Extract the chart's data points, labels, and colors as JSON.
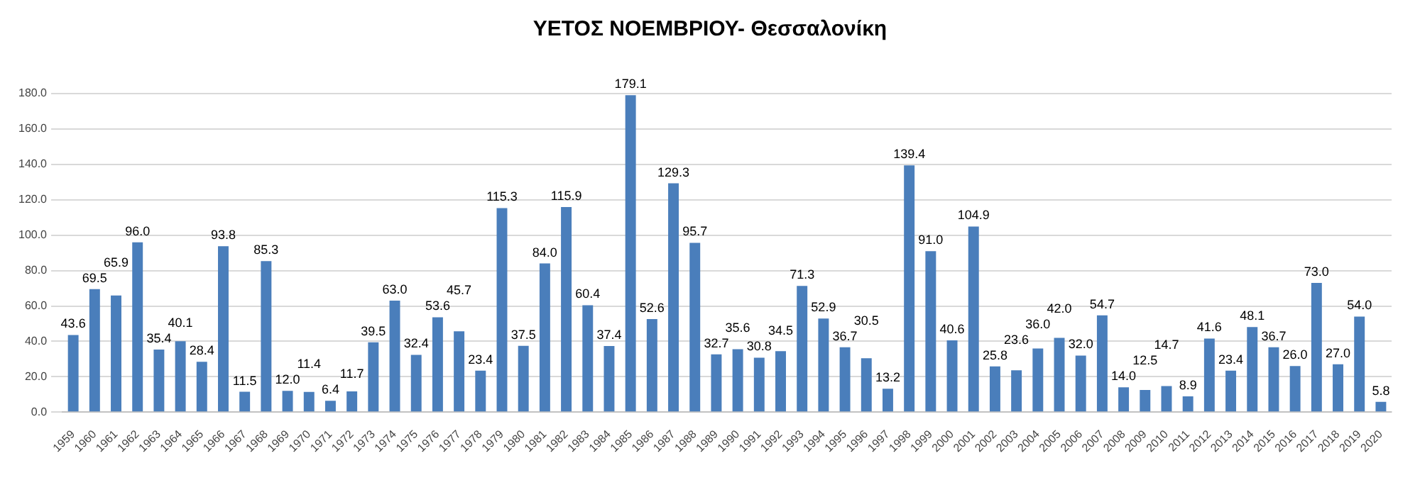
{
  "chart_data": {
    "type": "bar",
    "title": "ΥΕΤΟΣ ΝΟΕΜΒΡΙΟΥ- Θεσσαλονίκη",
    "categories": [
      "1959",
      "1960",
      "1961",
      "1962",
      "1963",
      "1964",
      "1965",
      "1966",
      "1967",
      "1968",
      "1969",
      "1970",
      "1971",
      "1972",
      "1973",
      "1974",
      "1975",
      "1976",
      "1977",
      "1978",
      "1979",
      "1980",
      "1981",
      "1982",
      "1983",
      "1984",
      "1985",
      "1986",
      "1987",
      "1988",
      "1989",
      "1990",
      "1991",
      "1992",
      "1993",
      "1994",
      "1995",
      "1996",
      "1997",
      "1998",
      "1999",
      "2000",
      "2001",
      "2002",
      "2003",
      "2004",
      "2005",
      "2006",
      "2007",
      "2008",
      "2009",
      "2010",
      "2011",
      "2012",
      "2013",
      "2014",
      "2015",
      "2016",
      "2017",
      "2018",
      "2019",
      "2020"
    ],
    "values": [
      43.6,
      69.5,
      65.9,
      96.0,
      35.4,
      40.1,
      28.4,
      93.8,
      11.5,
      85.3,
      12.0,
      11.4,
      6.4,
      11.7,
      39.5,
      63.0,
      32.4,
      53.6,
      45.7,
      23.4,
      115.3,
      37.5,
      84.0,
      115.9,
      60.4,
      37.4,
      179.1,
      52.6,
      129.3,
      95.7,
      32.7,
      35.6,
      30.8,
      34.5,
      71.3,
      52.9,
      36.7,
      30.5,
      13.2,
      139.4,
      91.0,
      40.6,
      104.9,
      25.8,
      23.6,
      36.0,
      42.0,
      32.0,
      54.7,
      14.0,
      12.5,
      14.7,
      8.9,
      41.6,
      23.4,
      48.1,
      36.7,
      26.0,
      73.0,
      27.0,
      54.0,
      5.8
    ],
    "color": "#4a7ebb",
    "ylim": [
      0,
      180
    ],
    "yticks": [
      {
        "value": 0,
        "label": "0.0"
      },
      {
        "value": 20,
        "label": "20.0"
      },
      {
        "value": 40,
        "label": "40.0"
      },
      {
        "value": 60,
        "label": "60.0"
      },
      {
        "value": 80,
        "label": "80.0"
      },
      {
        "value": 100,
        "label": "100.0"
      },
      {
        "value": 120,
        "label": "120.0"
      },
      {
        "value": 140,
        "label": "140.0"
      },
      {
        "value": 160,
        "label": "160.0"
      },
      {
        "value": 180,
        "label": "180.0"
      }
    ],
    "grid": "y",
    "legend": false,
    "value_labels": [
      "43.6",
      "69.5",
      "65.9",
      "96.0",
      "35.4",
      "40.1",
      "28.4",
      "93.8",
      "11.5",
      "85.3",
      "12.0",
      "11.4",
      "6.4",
      "11.7",
      "39.5",
      "63.0",
      "32.4",
      "53.6",
      "45.7",
      "23.4",
      "115.3",
      "37.5",
      "84.0",
      "115.9",
      "60.4",
      "37.4",
      "179.1",
      "52.6",
      "129.3",
      "95.7",
      "32.7",
      "35.6",
      "30.8",
      "34.5",
      "71.3",
      "52.9",
      "36.7",
      "30.5",
      "13.2",
      "139.4",
      "91.0",
      "40.6",
      "104.9",
      "25.8",
      "23.6",
      "36.0",
      "42.0",
      "32.0",
      "54.7",
      "14.0",
      "12.5",
      "14.7",
      "8.9",
      "41.6",
      "23.4",
      "48.1",
      "36.7",
      "26.0",
      "73.0",
      "27.0",
      "54.0",
      "5.8"
    ]
  }
}
